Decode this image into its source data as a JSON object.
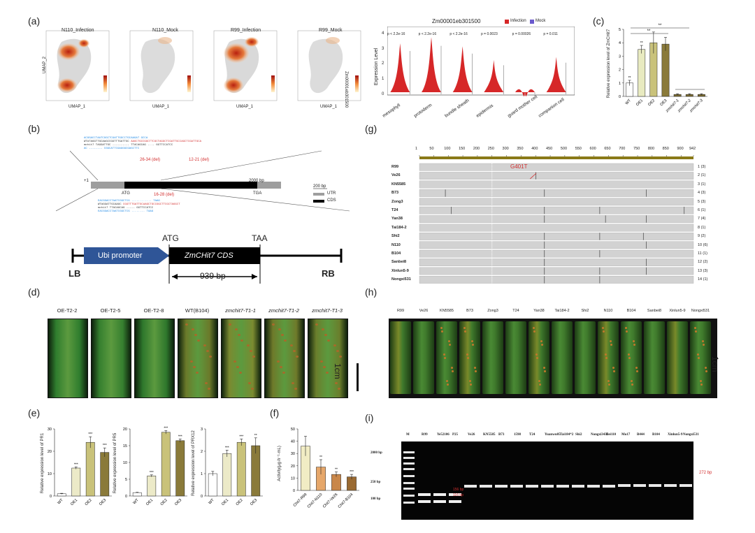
{
  "panels": {
    "a": "(a)",
    "b": "(b)",
    "c": "(c)",
    "d": "(d)",
    "e": "(e)",
    "f": "(f)",
    "g": "(g)",
    "h": "(h)",
    "i": "(i)"
  },
  "umap": {
    "titles": [
      "N110_Infection",
      "N110_Mock",
      "R99_Infection",
      "R99_Mock"
    ],
    "xlabel": "UMAP_1",
    "ylabel": "UMAP_2",
    "legend_title": "Expression",
    "legend_ticks": [
      "10.0",
      "7.5",
      "5.0",
      "2.5"
    ],
    "side_label": "Zm00001eb301500"
  },
  "violin": {
    "title": "Zm00001eb301500",
    "legend": [
      "Infection",
      "Mock"
    ],
    "colors": {
      "infection": "#d62728",
      "mock": "#6a5acd"
    },
    "ylabel": "Expression Level",
    "yticks": [
      "0",
      "1",
      "2",
      "3",
      "4"
    ],
    "pvalues": [
      "p < 2.2e-16",
      "p < 2.2e-16",
      "p < 2.2e-16",
      "p = 0.0023",
      "p = 0.00026",
      "p = 0.011"
    ],
    "celltypes": [
      "mesophyll",
      "protoderm",
      "bundle sheath",
      "epidermis",
      "guard mother cell",
      "companion cell"
    ]
  },
  "chart_c": {
    "ylabel": "Relative expression level of ZmCHit7",
    "yticks": [
      "0",
      "1",
      "2",
      "3",
      "4",
      "5"
    ],
    "categories": [
      "WT",
      "OE1",
      "OE2",
      "OE3",
      "zmchit7-1",
      "zmchit7-2",
      "zmchit7-3"
    ],
    "sig": [
      "**",
      "**"
    ],
    "chart_data": {
      "type": "bar",
      "categories": [
        "WT",
        "OE1",
        "OE2",
        "OE3",
        "zmchit7-1",
        "zmchit7-2",
        "zmchit7-3"
      ],
      "values": [
        1.0,
        3.5,
        4.0,
        3.9,
        0.15,
        0.15,
        0.15
      ],
      "errors": [
        0.2,
        0.3,
        0.8,
        0.5,
        0.05,
        0.05,
        0.05
      ],
      "ylim": [
        0,
        5
      ],
      "colors": [
        "#ffffff",
        "#e8eac0",
        "#c9c27a",
        "#8a7a3a",
        "#7a6a30",
        "#7a6a30",
        "#7a6a30"
      ]
    }
  },
  "construct_b": {
    "seq_label_red1": "26-34 (del)",
    "seq_label_red2": "12-21 (del)",
    "scale_bar": "200 bp",
    "gene_start": "+1",
    "gene_end": "2000 bp",
    "atg": "ATG",
    "tga": "TGA",
    "legend_utr": "UTR",
    "legend_cds": "CDS",
    "lower_seq_label": "16-28 (del)",
    "lb": "LB",
    "rb": "RB",
    "promoter": "Ubi promoter",
    "cds_label": "ZmCHit7 CDS",
    "start_codon": "ATG",
    "stop_codon": "TAA",
    "length": "939 bp"
  },
  "alignment_g": {
    "ruler": [
      "1",
      "50",
      "100",
      "150",
      "200",
      "250",
      "300",
      "350",
      "400",
      "450",
      "500",
      "550",
      "600",
      "650",
      "700",
      "750",
      "800",
      "850",
      "900",
      "942"
    ],
    "snp": "G401T",
    "lines": [
      "R99",
      "Ve26",
      "KN5585",
      "B73",
      "Zong3",
      "T24",
      "Yan38",
      "Tai184-2",
      "Shi2",
      "N110",
      "B104",
      "Sanbei8",
      "Xinlun5-9",
      "Nongxi531"
    ],
    "haplotypes": [
      "1 (3)",
      "2 (1)",
      "3 (1)",
      "4 (3)",
      "5 (3)",
      "6 (1)",
      "7 (4)",
      "8 (1)",
      "9 (2)",
      "10 (6)",
      "11 (1)",
      "12 (2)",
      "13 (3)",
      "14 (1)"
    ]
  },
  "leaves_d": {
    "labels": [
      "OE-T2-2",
      "OE-T2-5",
      "OE-T2-8",
      "WT(B104)",
      "zmchit7-T1-1",
      "zmchit7-T1-2",
      "zmchit7-T1-3"
    ],
    "scale": "1cm"
  },
  "leaves_h": {
    "labels": [
      "R99",
      "Ve26",
      "KN5585",
      "B73",
      "Zong3",
      "T24",
      "Yan38",
      "Tai184-2",
      "Shi2",
      "N110",
      "B104",
      "Sanbei8",
      "Xinlun5-9",
      "Nongxi531"
    ],
    "scale": "1cm"
  },
  "chart_e": [
    {
      "ylabel": "Relative expression level of PR1",
      "yticks": [
        "0",
        "10",
        "20",
        "30"
      ],
      "categories": [
        "WT",
        "OE1",
        "OE2",
        "OE3"
      ],
      "sig": [
        "",
        "***",
        "***",
        "***"
      ],
      "chart_data": {
        "type": "bar",
        "categories": [
          "WT",
          "OE1",
          "OE2",
          "OE3"
        ],
        "values": [
          1,
          12.5,
          24,
          19.5
        ],
        "errors": [
          0.2,
          0.5,
          2.5,
          2
        ],
        "ylim": [
          0,
          30
        ]
      }
    },
    {
      "ylabel": "Relative expression level of PR5",
      "yticks": [
        "0",
        "5",
        "10",
        "15",
        "20"
      ],
      "categories": [
        "WT",
        "OE1",
        "OE2",
        "OE3"
      ],
      "sig": [
        "",
        "***",
        "***",
        "***"
      ],
      "chart_data": {
        "type": "bar",
        "categories": [
          "WT",
          "OE1",
          "OE2",
          "OE3"
        ],
        "values": [
          1,
          6,
          19,
          16.5
        ],
        "errors": [
          0.1,
          0.3,
          0.5,
          0.5
        ],
        "ylim": [
          0,
          20
        ]
      }
    },
    {
      "ylabel": "Relative expression level of PRX12",
      "yticks": [
        "0",
        "1",
        "2",
        "3"
      ],
      "categories": [
        "WT",
        "OE1",
        "OE2",
        "OE3"
      ],
      "sig": [
        "",
        "***",
        "***",
        "**"
      ],
      "chart_data": {
        "type": "bar",
        "categories": [
          "WT",
          "OE1",
          "OE2",
          "OE3"
        ],
        "values": [
          1,
          1.9,
          2.4,
          2.25
        ],
        "errors": [
          0.1,
          0.15,
          0.15,
          0.35
        ],
        "ylim": [
          0,
          3
        ]
      }
    }
  ],
  "chart_f": {
    "ylabel": "Activity(μg·h⁻¹·mL)",
    "yticks": [
      "0",
      "10",
      "20",
      "30",
      "40",
      "50"
    ],
    "categories": [
      "Chit7-R99",
      "Chit7-N110",
      "Chit7-Ve26",
      "Chit7-B104"
    ],
    "sig": [
      "",
      "**",
      "**",
      "***"
    ],
    "chart_data": {
      "type": "bar",
      "categories": [
        "Chit7-R99",
        "Chit7-N110",
        "Chit7-Ve26",
        "Chit7-B104"
      ],
      "values": [
        36,
        19,
        13,
        11
      ],
      "errors": [
        8,
        6,
        2,
        2
      ],
      "ylim": [
        0,
        50
      ],
      "colors": [
        "#f1ecc4",
        "#e6a76a",
        "#c9874a",
        "#9a6a32"
      ]
    }
  },
  "gel_i": {
    "lanes": [
      "M",
      "R99",
      "Ye52106",
      "P25",
      "Ve26",
      "KN5585",
      "B73",
      "1598",
      "T24",
      "Yuanwu05",
      "Tai184*2",
      "Shi2",
      "Nongxi3435",
      "Bei110",
      "Mo17",
      "B444",
      "B104",
      "Xinlun5-9",
      "Nongxi531"
    ],
    "marker_labels": [
      "2000 bp",
      "250 bp",
      "100 bp"
    ],
    "right_label": "272 bp",
    "cut_labels": [
      "156 bp",
      "116 bp"
    ]
  }
}
